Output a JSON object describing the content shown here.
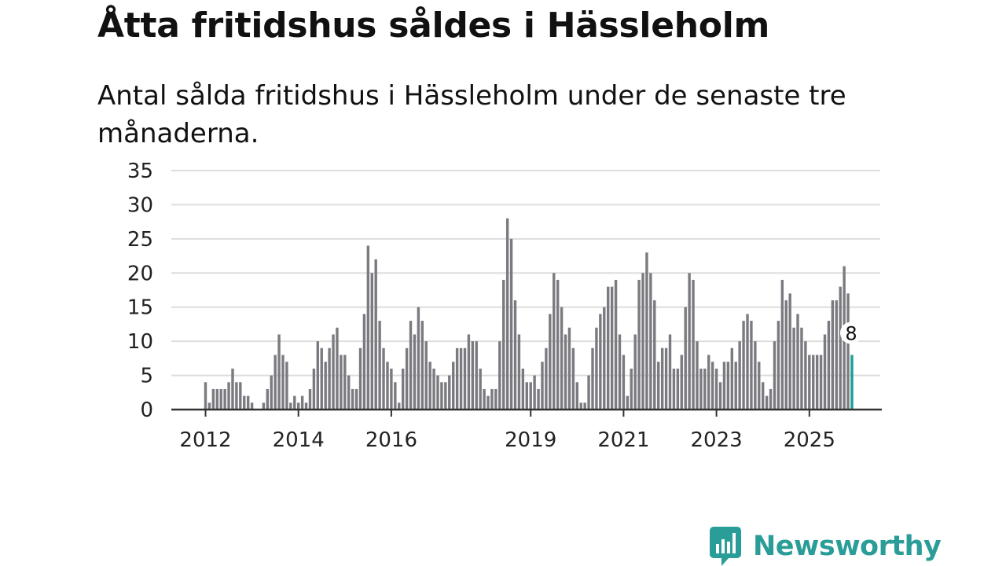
{
  "header": {
    "title": "Åtta fritidshus såldes i Hässleholm",
    "subtitle": "Antal sålda fritidshus i Hässleholm under de senaste tre månaderna."
  },
  "chart_data": {
    "type": "bar",
    "title": "Åtta fritidshus såldes i Hässleholm",
    "subtitle": "Antal sålda fritidshus i Hässleholm under de senaste tre månaderna.",
    "xlabel": "",
    "ylabel": "",
    "ylim": [
      0,
      35
    ],
    "yticks": [
      0,
      5,
      10,
      15,
      20,
      25,
      30,
      35
    ],
    "xticks": [
      "2012",
      "2014",
      "2016",
      "2019",
      "2021",
      "2023",
      "2025"
    ],
    "grid": true,
    "frequency": "monthly",
    "first_period": "2012-01",
    "values": [
      4,
      1,
      3,
      3,
      3,
      3,
      4,
      6,
      4,
      4,
      2,
      2,
      1,
      0,
      0,
      1,
      3,
      5,
      8,
      11,
      8,
      7,
      1,
      2,
      1,
      2,
      1,
      3,
      6,
      10,
      9,
      7,
      9,
      11,
      12,
      8,
      8,
      5,
      3,
      3,
      9,
      14,
      24,
      20,
      22,
      13,
      9,
      7,
      6,
      4,
      1,
      6,
      9,
      13,
      11,
      15,
      13,
      10,
      7,
      6,
      5,
      4,
      4,
      5,
      7,
      9,
      9,
      9,
      11,
      10,
      10,
      6,
      3,
      2,
      3,
      3,
      10,
      19,
      28,
      25,
      16,
      11,
      6,
      4,
      4,
      5,
      3,
      7,
      9,
      14,
      20,
      19,
      15,
      11,
      12,
      9,
      4,
      1,
      1,
      5,
      9,
      12,
      14,
      15,
      18,
      18,
      19,
      11,
      8,
      2,
      6,
      11,
      19,
      20,
      23,
      20,
      16,
      7,
      9,
      9,
      11,
      6,
      6,
      8,
      15,
      20,
      19,
      10,
      6,
      6,
      8,
      7,
      6,
      4,
      7,
      7,
      9,
      7,
      10,
      13,
      14,
      13,
      10,
      7,
      4,
      2,
      3,
      10,
      13,
      19,
      16,
      17,
      12,
      14,
      12,
      10,
      8,
      8,
      8,
      8,
      11,
      13,
      16,
      16,
      18,
      21,
      17,
      8
    ],
    "highlight": {
      "index_from_end": 1,
      "value": 8,
      "label": "8"
    },
    "colors": {
      "bars": "#7a7a80",
      "highlight": "#1a9c9a",
      "grid": "#dddddd",
      "axis": "#333333"
    }
  },
  "brand": {
    "name": "Newsworthy",
    "color": "#2a9d98",
    "icon": "newsworthy-logo-icon"
  }
}
